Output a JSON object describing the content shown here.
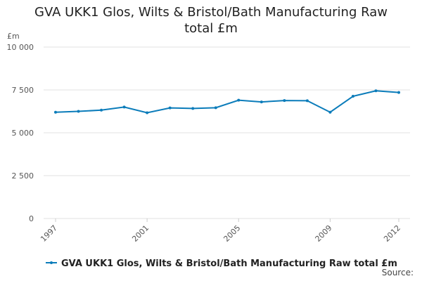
{
  "chart_data": {
    "type": "line",
    "title": "GVA UKK1 Glos, Wilts & Bristol/Bath Manufacturing Raw total £m",
    "y_label": "£m",
    "source": "Source:",
    "x": [
      1997,
      1998,
      1999,
      2000,
      2001,
      2002,
      2003,
      2004,
      2005,
      2006,
      2007,
      2008,
      2009,
      2010,
      2011,
      2012
    ],
    "series": [
      {
        "name": "GVA UKK1 Glos, Wilts & Bristol/Bath Manufacturing Raw total £m",
        "color": "#0b7cba",
        "values": [
          6200,
          6250,
          6320,
          6500,
          6170,
          6450,
          6420,
          6460,
          6900,
          6800,
          6880,
          6870,
          6200,
          7130,
          7450,
          7350
        ]
      }
    ],
    "xlim": [
      1997,
      2012
    ],
    "xticks": [
      1997,
      2001,
      2005,
      2009,
      2012
    ],
    "ylim": [
      0,
      10000
    ],
    "yticks": [
      0,
      {
        "value": 2500,
        "label": "2 500"
      },
      {
        "value": 5000,
        "label": "5 000"
      },
      {
        "value": 7500,
        "label": "7 500"
      },
      {
        "value": 10000,
        "label": "10 000"
      }
    ],
    "grid": true
  }
}
